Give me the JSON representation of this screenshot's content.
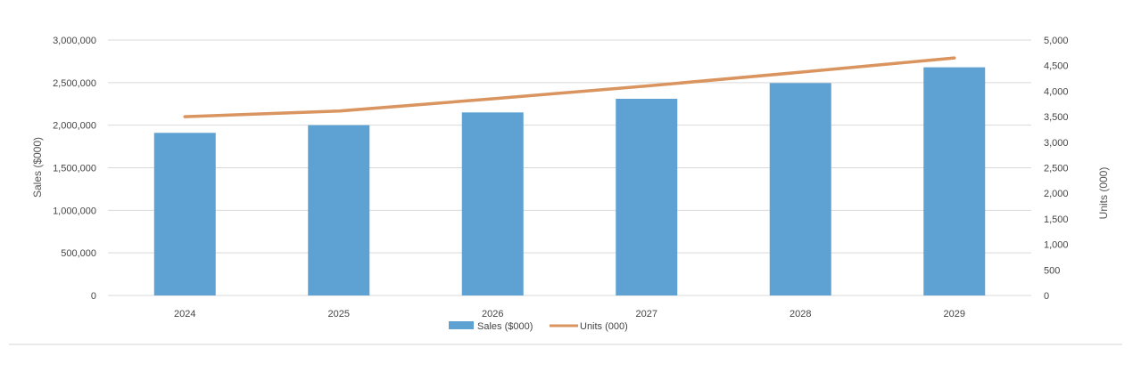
{
  "chart_data": {
    "type": "bar",
    "categories": [
      "2024",
      "2025",
      "2026",
      "2027",
      "2028",
      "2029"
    ],
    "series": [
      {
        "name": "Sales ($000)",
        "type": "bar",
        "axis": "left",
        "color": "#5ea2d3",
        "values": [
          1910000,
          2000000,
          2150000,
          2310000,
          2495000,
          2680000
        ]
      },
      {
        "name": "Units (000)",
        "type": "line",
        "axis": "right",
        "color": "#d9945f",
        "values": [
          3500,
          3610,
          3850,
          4100,
          4370,
          4650
        ]
      }
    ],
    "ylabel": "Sales ($000)",
    "y2label": "Units (000)",
    "ylim": [
      0,
      3000000
    ],
    "y2lim": [
      0,
      5000
    ],
    "yticks": [
      "0",
      "500,000",
      "1,000,000",
      "1,500,000",
      "2,000,000",
      "2,500,000",
      "3,000,000"
    ],
    "y2ticks": [
      "0",
      "500",
      "1,000",
      "1,500",
      "2,000",
      "2,500",
      "3,000",
      "3,500",
      "4,000",
      "4,500",
      "5,000"
    ],
    "grid": true,
    "legend_position": "bottom",
    "colors": {
      "gridline": "#d9d9d9",
      "tick_text": "#444444",
      "axis_title": "#555555"
    }
  }
}
